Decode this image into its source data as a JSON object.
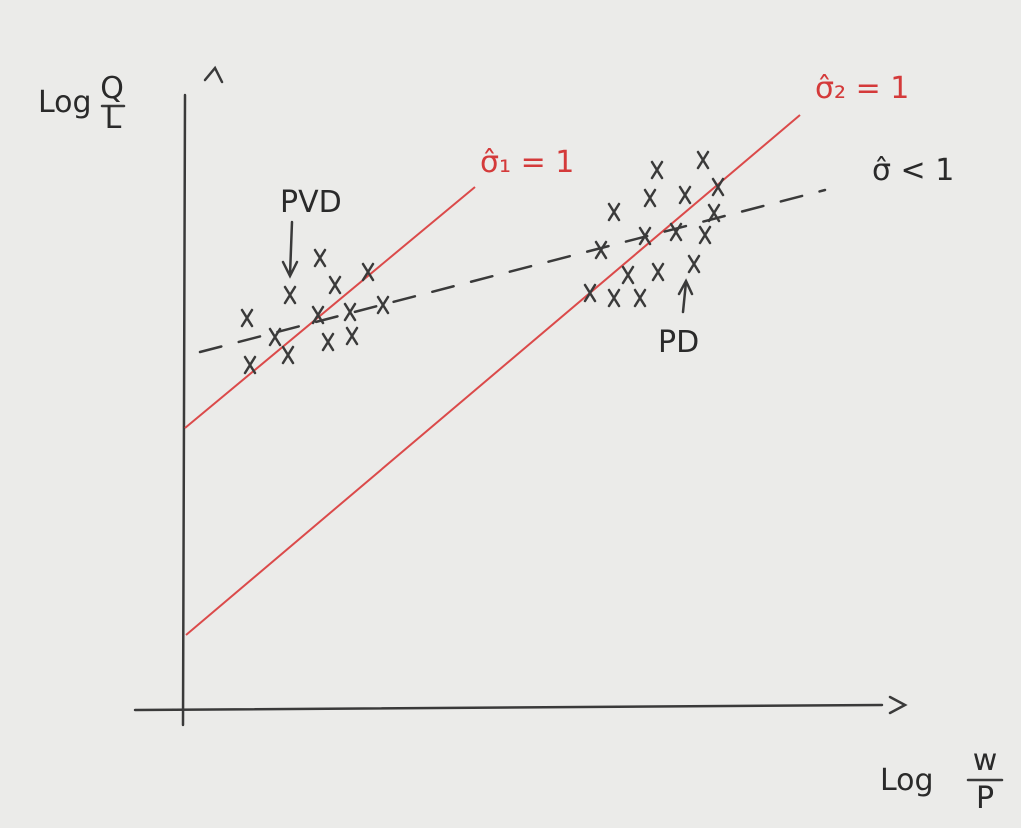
{
  "axes": {
    "y": {
      "label": {
        "prefix": "Log",
        "numerator": "Q",
        "denominator": "L"
      }
    },
    "x": {
      "label": {
        "prefix": "Log",
        "numerator": "w",
        "denominator": "P"
      }
    }
  },
  "lines": [
    {
      "label": "σ̂₁ = 1"
    },
    {
      "label": "σ̂₂ = 1"
    },
    {
      "label": "σ̂ < 1"
    }
  ],
  "annotations": [
    "PVD",
    "PD"
  ]
}
